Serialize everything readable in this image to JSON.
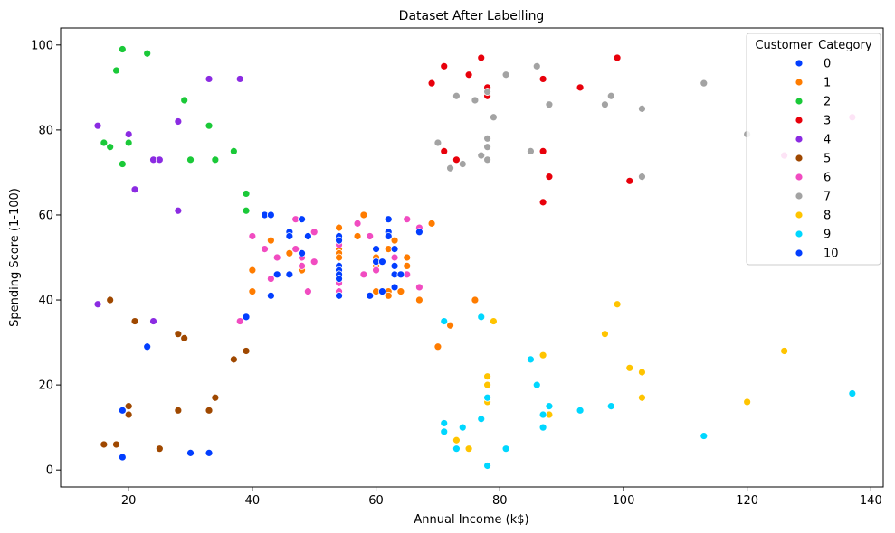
{
  "chart_data": {
    "type": "scatter",
    "title": "Dataset After Labelling",
    "xlabel": "Annual Income (k$)",
    "ylabel": "Spending Score (1-100)",
    "xlim": [
      9,
      142
    ],
    "ylim": [
      -4,
      104
    ],
    "xticks": [
      20,
      40,
      60,
      80,
      100,
      120,
      140
    ],
    "yticks": [
      0,
      20,
      40,
      60,
      80,
      100
    ],
    "grid": false,
    "legend": {
      "title": "Customer_Category",
      "position": "top-right"
    },
    "series": [
      {
        "name": "0",
        "color": "#023eff",
        "points": []
      },
      {
        "name": "1",
        "color": "#ff7c00",
        "points": [
          [
            40,
            47
          ],
          [
            40,
            42
          ],
          [
            43,
            54
          ],
          [
            46,
            51
          ],
          [
            48,
            47
          ],
          [
            54,
            57
          ],
          [
            54,
            52
          ],
          [
            54,
            51
          ],
          [
            54,
            50
          ],
          [
            57,
            55
          ],
          [
            58,
            60
          ],
          [
            59,
            55
          ],
          [
            60,
            48
          ],
          [
            60,
            50
          ],
          [
            60,
            42
          ],
          [
            62,
            42
          ],
          [
            62,
            41
          ],
          [
            62,
            52
          ],
          [
            63,
            54
          ],
          [
            64,
            42
          ],
          [
            65,
            48
          ],
          [
            65,
            50
          ],
          [
            67,
            40
          ],
          [
            69,
            58
          ],
          [
            70,
            29
          ],
          [
            72,
            34
          ],
          [
            76,
            40
          ]
        ]
      },
      {
        "name": "2",
        "color": "#1ac938",
        "points": [
          [
            16,
            77
          ],
          [
            17,
            76
          ],
          [
            18,
            94
          ],
          [
            19,
            99
          ],
          [
            19,
            72
          ],
          [
            20,
            77
          ],
          [
            23,
            98
          ],
          [
            29,
            87
          ],
          [
            30,
            73
          ],
          [
            33,
            81
          ],
          [
            34,
            73
          ],
          [
            37,
            75
          ],
          [
            39,
            65
          ],
          [
            39,
            61
          ]
        ]
      },
      {
        "name": "3",
        "color": "#e8000b",
        "points": [
          [
            69,
            91
          ],
          [
            71,
            95
          ],
          [
            71,
            75
          ],
          [
            73,
            73
          ],
          [
            75,
            93
          ],
          [
            77,
            97
          ],
          [
            78,
            90
          ],
          [
            78,
            88
          ],
          [
            87,
            92
          ],
          [
            87,
            75
          ],
          [
            87,
            63
          ],
          [
            88,
            69
          ],
          [
            93,
            90
          ],
          [
            99,
            97
          ],
          [
            101,
            68
          ]
        ]
      },
      {
        "name": "4",
        "color": "#8b2be2",
        "points": [
          [
            15,
            81
          ],
          [
            15,
            39
          ],
          [
            20,
            79
          ],
          [
            21,
            66
          ],
          [
            24,
            73
          ],
          [
            25,
            73
          ],
          [
            24,
            35
          ],
          [
            28,
            82
          ],
          [
            28,
            61
          ],
          [
            33,
            92
          ],
          [
            38,
            92
          ]
        ]
      },
      {
        "name": "5",
        "color": "#9f4800",
        "points": [
          [
            16,
            6
          ],
          [
            17,
            40
          ],
          [
            18,
            6
          ],
          [
            20,
            15
          ],
          [
            20,
            13
          ],
          [
            21,
            35
          ],
          [
            25,
            5
          ],
          [
            28,
            32
          ],
          [
            28,
            14
          ],
          [
            29,
            31
          ],
          [
            33,
            14
          ],
          [
            34,
            17
          ],
          [
            37,
            26
          ],
          [
            39,
            28
          ]
        ]
      },
      {
        "name": "6",
        "color": "#f14cc1",
        "points": [
          [
            38,
            35
          ],
          [
            40,
            55
          ],
          [
            42,
            52
          ],
          [
            43,
            45
          ],
          [
            44,
            50
          ],
          [
            47,
            52
          ],
          [
            47,
            59
          ],
          [
            48,
            50
          ],
          [
            48,
            48
          ],
          [
            49,
            42
          ],
          [
            50,
            56
          ],
          [
            50,
            49
          ],
          [
            54,
            53
          ],
          [
            54,
            44
          ],
          [
            54,
            42
          ],
          [
            57,
            58
          ],
          [
            58,
            46
          ],
          [
            59,
            55
          ],
          [
            60,
            47
          ],
          [
            63,
            48
          ],
          [
            63,
            50
          ],
          [
            65,
            59
          ],
          [
            65,
            46
          ],
          [
            67,
            57
          ],
          [
            67,
            43
          ],
          [
            126,
            74
          ],
          [
            137,
            83
          ]
        ]
      },
      {
        "name": "7",
        "color": "#a3a3a3",
        "points": [
          [
            70,
            77
          ],
          [
            72,
            71
          ],
          [
            73,
            88
          ],
          [
            74,
            72
          ],
          [
            76,
            87
          ],
          [
            77,
            74
          ],
          [
            78,
            89
          ],
          [
            78,
            78
          ],
          [
            78,
            76
          ],
          [
            78,
            73
          ],
          [
            79,
            83
          ],
          [
            81,
            93
          ],
          [
            85,
            75
          ],
          [
            86,
            95
          ],
          [
            88,
            86
          ],
          [
            97,
            86
          ],
          [
            98,
            88
          ],
          [
            103,
            85
          ],
          [
            103,
            69
          ],
          [
            113,
            91
          ],
          [
            120,
            79
          ]
        ]
      },
      {
        "name": "8",
        "color": "#ffc400",
        "points": [
          [
            73,
            7
          ],
          [
            75,
            5
          ],
          [
            78,
            22
          ],
          [
            78,
            20
          ],
          [
            78,
            16
          ],
          [
            79,
            35
          ],
          [
            87,
            27
          ],
          [
            88,
            13
          ],
          [
            97,
            32
          ],
          [
            99,
            39
          ],
          [
            101,
            24
          ],
          [
            103,
            23
          ],
          [
            103,
            17
          ],
          [
            120,
            16
          ],
          [
            126,
            28
          ]
        ]
      },
      {
        "name": "9",
        "color": "#00d7ff",
        "points": [
          [
            71,
            35
          ],
          [
            71,
            11
          ],
          [
            71,
            9
          ],
          [
            73,
            5
          ],
          [
            74,
            10
          ],
          [
            77,
            36
          ],
          [
            77,
            12
          ],
          [
            78,
            17
          ],
          [
            78,
            1
          ],
          [
            81,
            5
          ],
          [
            85,
            26
          ],
          [
            86,
            20
          ],
          [
            87,
            13
          ],
          [
            87,
            10
          ],
          [
            88,
            15
          ],
          [
            93,
            14
          ],
          [
            98,
            15
          ],
          [
            113,
            8
          ],
          [
            137,
            18
          ]
        ]
      },
      {
        "name": "10",
        "color": "#023eff",
        "points": [
          [
            19,
            14
          ],
          [
            19,
            3
          ],
          [
            23,
            29
          ],
          [
            30,
            4
          ],
          [
            33,
            4
          ],
          [
            39,
            36
          ],
          [
            42,
            60
          ],
          [
            43,
            60
          ],
          [
            43,
            41
          ],
          [
            44,
            46
          ],
          [
            46,
            56
          ],
          [
            46,
            55
          ],
          [
            46,
            46
          ],
          [
            48,
            59
          ],
          [
            48,
            51
          ],
          [
            49,
            55
          ],
          [
            54,
            55
          ],
          [
            54,
            54
          ],
          [
            54,
            48
          ],
          [
            54,
            47
          ],
          [
            54,
            46
          ],
          [
            54,
            45
          ],
          [
            54,
            41
          ],
          [
            59,
            41
          ],
          [
            60,
            52
          ],
          [
            60,
            49
          ],
          [
            61,
            49
          ],
          [
            61,
            42
          ],
          [
            62,
            59
          ],
          [
            62,
            56
          ],
          [
            62,
            55
          ],
          [
            63,
            52
          ],
          [
            63,
            48
          ],
          [
            63,
            46
          ],
          [
            63,
            43
          ],
          [
            64,
            46
          ],
          [
            67,
            56
          ]
        ]
      }
    ]
  }
}
